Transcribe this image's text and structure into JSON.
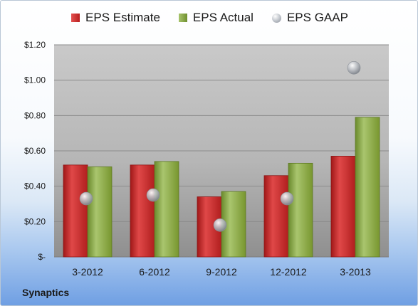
{
  "chart_data": {
    "type": "bar",
    "title": "",
    "categories": [
      "3-2012",
      "6-2012",
      "9-2012",
      "12-2012",
      "3-2013"
    ],
    "series": [
      {
        "name": "EPS Estimate",
        "kind": "bar",
        "color": "#c62828",
        "values": [
          0.52,
          0.52,
          0.34,
          0.46,
          0.57
        ]
      },
      {
        "name": "EPS Actual",
        "kind": "bar",
        "color": "#8aa64a",
        "values": [
          0.51,
          0.54,
          0.37,
          0.53,
          0.79
        ]
      },
      {
        "name": "EPS GAAP",
        "kind": "marker",
        "color": "#a0a4aa",
        "values": [
          0.33,
          0.35,
          0.18,
          0.33,
          1.07
        ]
      }
    ],
    "y_ticks": [
      "$-",
      "$0.20",
      "$0.40",
      "$0.60",
      "$0.80",
      "$1.00",
      "$1.20"
    ],
    "ylim": [
      0,
      1.2
    ],
    "xlabel": "",
    "ylabel": "",
    "grid": true,
    "legend_position": "top"
  },
  "footer": {
    "company": "Synaptics"
  }
}
